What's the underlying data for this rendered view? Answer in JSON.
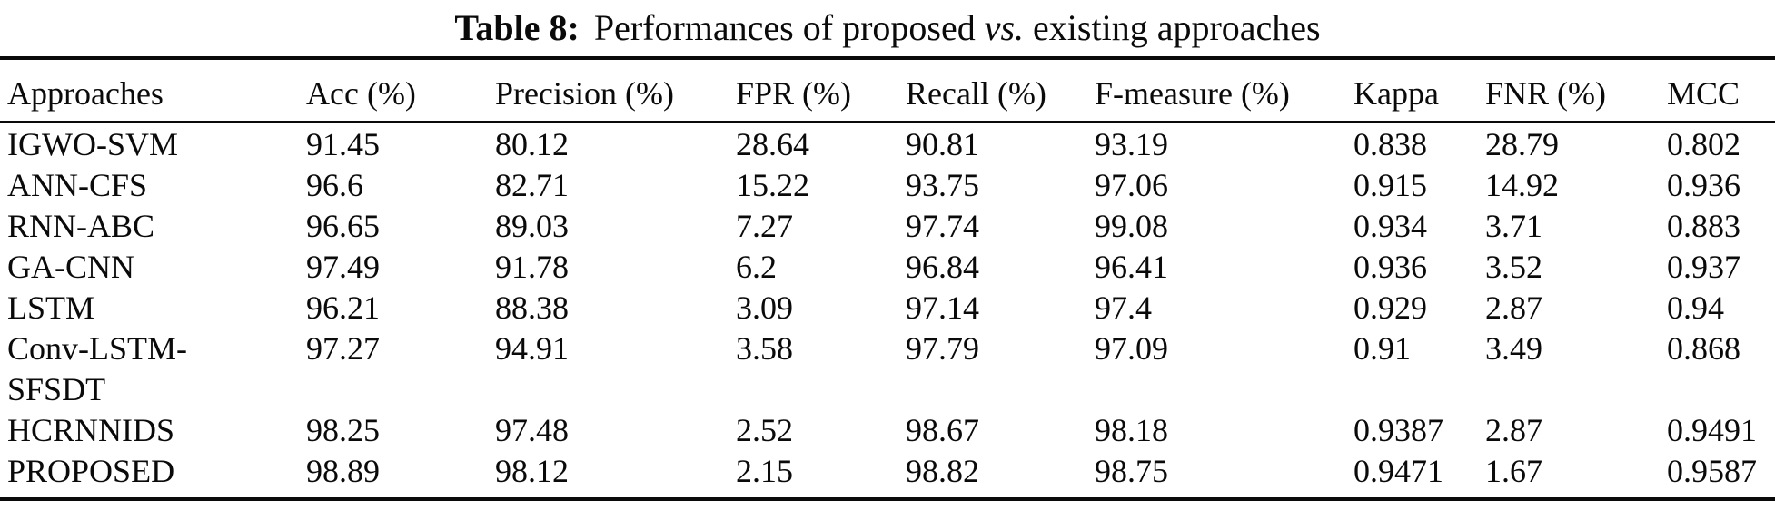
{
  "title": {
    "label": "Table 8:",
    "caption_part1": "Performances of proposed",
    "caption_italic": "vs.",
    "caption_part2": "existing approaches"
  },
  "table": {
    "columns": [
      "Approaches",
      "Acc (%)",
      "Precision (%)",
      "FPR (%)",
      "Recall (%)",
      "F-measure (%)",
      "Kappa",
      "FNR (%)",
      "MCC"
    ],
    "column_keys": [
      "approach",
      "acc",
      "precision",
      "fpr",
      "recall",
      "f-measure",
      "kappa",
      "fnr",
      "mcc"
    ],
    "rows": [
      [
        "IGWO-SVM",
        "91.45",
        "80.12",
        "28.64",
        "90.81",
        "93.19",
        "0.838",
        "28.79",
        "0.802"
      ],
      [
        "ANN-CFS",
        "96.6",
        "82.71",
        "15.22",
        "93.75",
        "97.06",
        "0.915",
        "14.92",
        "0.936"
      ],
      [
        "RNN-ABC",
        "96.65",
        "89.03",
        "7.27",
        "97.74",
        "99.08",
        "0.934",
        "3.71",
        "0.883"
      ],
      [
        "GA-CNN",
        "97.49",
        "91.78",
        "6.2",
        "96.84",
        "96.41",
        "0.936",
        "3.52",
        "0.937"
      ],
      [
        "LSTM",
        "96.21",
        "88.38",
        "3.09",
        "97.14",
        "97.4",
        "0.929",
        "2.87",
        "0.94"
      ],
      [
        "Conv-LSTM-\nSFSDT",
        "97.27",
        "94.91",
        "3.58",
        "97.79",
        "97.09",
        "0.91",
        "3.49",
        "0.868"
      ],
      [
        "HCRNNIDS",
        "98.25",
        "97.48",
        "2.52",
        "98.67",
        "98.18",
        "0.9387",
        "2.87",
        "0.9491"
      ],
      [
        "PROPOSED",
        "98.89",
        "98.12",
        "2.15",
        "98.82",
        "98.75",
        "0.9471",
        "1.67",
        "0.9587"
      ]
    ]
  },
  "colors": {
    "text": "#0a0a0a",
    "background": "#ffffff",
    "rule": "#0a0a0a"
  }
}
